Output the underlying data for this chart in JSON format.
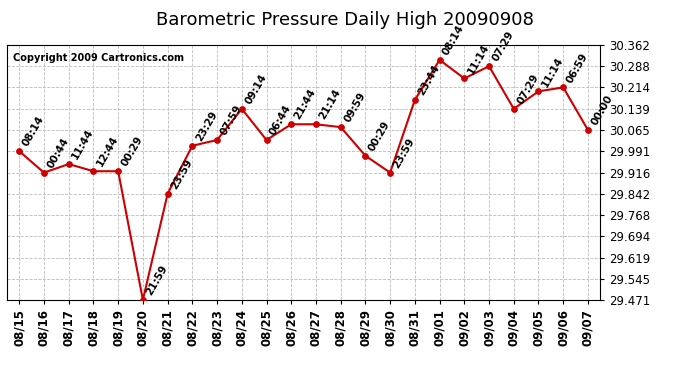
{
  "title": "Barometric Pressure Daily High 20090908",
  "copyright": "Copyright 2009 Cartronics.com",
  "points": [
    {
      "date": "08/15",
      "time": "08:14",
      "value": 29.991
    },
    {
      "date": "08/16",
      "time": "00:44",
      "value": 29.916
    },
    {
      "date": "08/17",
      "time": "11:44",
      "value": 29.946
    },
    {
      "date": "08/18",
      "time": "12:44",
      "value": 29.921
    },
    {
      "date": "08/19",
      "time": "00:29",
      "value": 29.921
    },
    {
      "date": "08/20",
      "time": "21:59",
      "value": 29.471
    },
    {
      "date": "08/21",
      "time": "23:59",
      "value": 29.842
    },
    {
      "date": "08/22",
      "time": "23:29",
      "value": 30.01
    },
    {
      "date": "08/23",
      "time": "07:59",
      "value": 30.03
    },
    {
      "date": "08/24",
      "time": "09:14",
      "value": 30.139
    },
    {
      "date": "08/25",
      "time": "06:44",
      "value": 30.03
    },
    {
      "date": "08/26",
      "time": "21:44",
      "value": 30.085
    },
    {
      "date": "08/27",
      "time": "21:14",
      "value": 30.085
    },
    {
      "date": "08/28",
      "time": "09:59",
      "value": 30.075
    },
    {
      "date": "08/29",
      "time": "00:29",
      "value": 29.975
    },
    {
      "date": "08/30",
      "time": "23:59",
      "value": 29.916
    },
    {
      "date": "08/31",
      "time": "23:44",
      "value": 30.17
    },
    {
      "date": "09/01",
      "time": "08:14",
      "value": 30.31
    },
    {
      "date": "09/02",
      "time": "11:14",
      "value": 30.245
    },
    {
      "date": "09/03",
      "time": "07:29",
      "value": 30.288
    },
    {
      "date": "09/04",
      "time": "07:29",
      "value": 30.139
    },
    {
      "date": "09/05",
      "time": "11:14",
      "value": 30.2
    },
    {
      "date": "09/06",
      "time": "06:59",
      "value": 30.214
    },
    {
      "date": "09/07",
      "time": "00:00",
      "value": 30.065
    }
  ],
  "line_color": "#cc0000",
  "marker_color": "#cc0000",
  "bg_color": "#ffffff",
  "grid_color": "#bbbbbb",
  "text_color": "#000000",
  "ylim_min": 29.471,
  "ylim_max": 30.362,
  "yticks": [
    29.471,
    29.545,
    29.619,
    29.694,
    29.768,
    29.842,
    29.916,
    29.991,
    30.065,
    30.139,
    30.214,
    30.288,
    30.362
  ],
  "label_fontsize": 8.5,
  "time_label_fontsize": 7.5,
  "title_fontsize": 13,
  "copyright_fontsize": 7
}
